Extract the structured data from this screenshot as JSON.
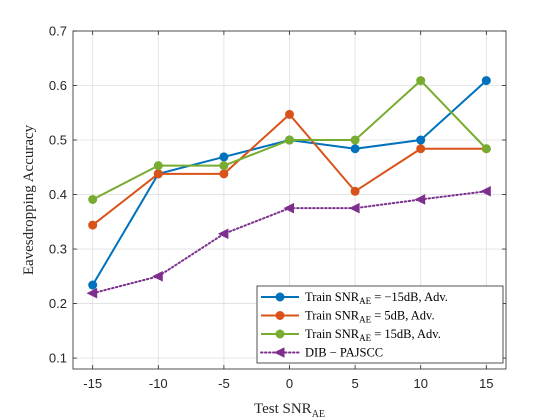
{
  "chart_data": {
    "type": "line",
    "xlabel": "Test SNR",
    "xlabel_sub": "AE",
    "ylabel": "Eavesdropping Accuracy",
    "x": [
      -15,
      -10,
      -5,
      0,
      5,
      10,
      15
    ],
    "x_tick_labels": [
      "-15",
      "-10",
      "-5",
      "0",
      "5",
      "10",
      "15"
    ],
    "y_tick_values": [
      0.1,
      0.2,
      0.3,
      0.4,
      0.5,
      0.6,
      0.7
    ],
    "y_tick_labels": [
      "0.1",
      "0.2",
      "0.3",
      "0.4",
      "0.5",
      "0.6",
      "0.7"
    ],
    "xlim": [
      -16.5,
      16.5
    ],
    "ylim": [
      0.08,
      0.7
    ],
    "grid": true,
    "legend_position": "bottom-right",
    "series": [
      {
        "name": "Train SNR_AE = −15dB, Adv.",
        "legend_pre": "Train SNR",
        "legend_sub": "AE",
        "legend_post": " = −15dB,  Adv.",
        "color": "#0072BD",
        "marker": "circle",
        "style": "solid",
        "values": [
          0.234,
          0.438,
          0.469,
          0.5,
          0.484,
          0.5,
          0.609
        ]
      },
      {
        "name": "Train SNR_AE = 5dB, Adv.",
        "legend_pre": "Train SNR",
        "legend_sub": "AE",
        "legend_post": " = 5dB,  Adv.",
        "color": "#D95319",
        "marker": "circle",
        "style": "solid",
        "values": [
          0.344,
          0.438,
          0.438,
          0.547,
          0.406,
          0.484,
          0.484
        ]
      },
      {
        "name": "Train SNR_AE = 15dB, Adv.",
        "legend_pre": "Train SNR",
        "legend_sub": "AE",
        "legend_post": " = 15dB,  Adv.",
        "color": "#77AC30",
        "marker": "circle",
        "style": "solid",
        "values": [
          0.391,
          0.453,
          0.453,
          0.5,
          0.5,
          0.609,
          0.484
        ]
      },
      {
        "name": "DIB − PAJSCC",
        "legend_pre": "DIB − PAJSCC",
        "legend_sub": "",
        "legend_post": "",
        "color": "#7E2F8E",
        "marker": "triangle-left",
        "style": "dotted",
        "values": [
          0.219,
          0.25,
          0.328,
          0.375,
          0.375,
          0.391,
          0.406
        ]
      }
    ]
  }
}
